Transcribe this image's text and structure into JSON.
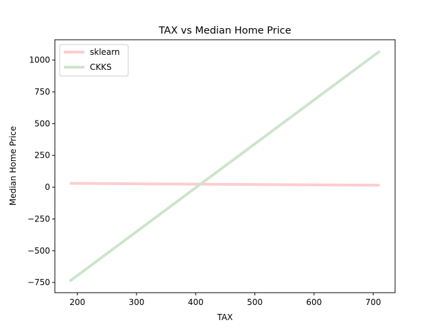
{
  "chart_data": {
    "type": "line",
    "title": "TAX vs Median Home Price",
    "xlabel": "TAX",
    "ylabel": "Median Home Price",
    "xlim": [
      162,
      737
    ],
    "ylim": [
      -830,
      1160
    ],
    "xticks": [
      200,
      300,
      400,
      500,
      600,
      700
    ],
    "yticks": [
      -750,
      -500,
      -250,
      0,
      250,
      500,
      750,
      1000
    ],
    "xtick_labels": [
      "200",
      "300",
      "400",
      "500",
      "600",
      "700"
    ],
    "ytick_labels": [
      "−750",
      "−500",
      "−250",
      "0",
      "250",
      "500",
      "750",
      "1000"
    ],
    "grid": false,
    "legend_position": "upper-left",
    "series": [
      {
        "name": "sklearn",
        "color": "#ffcccc",
        "x": [
          187,
          711
        ],
        "y": [
          30,
          15
        ]
      },
      {
        "name": "CKKS",
        "color": "#cce5cc",
        "x": [
          187,
          711
        ],
        "y": [
          -740,
          1070
        ]
      }
    ]
  }
}
